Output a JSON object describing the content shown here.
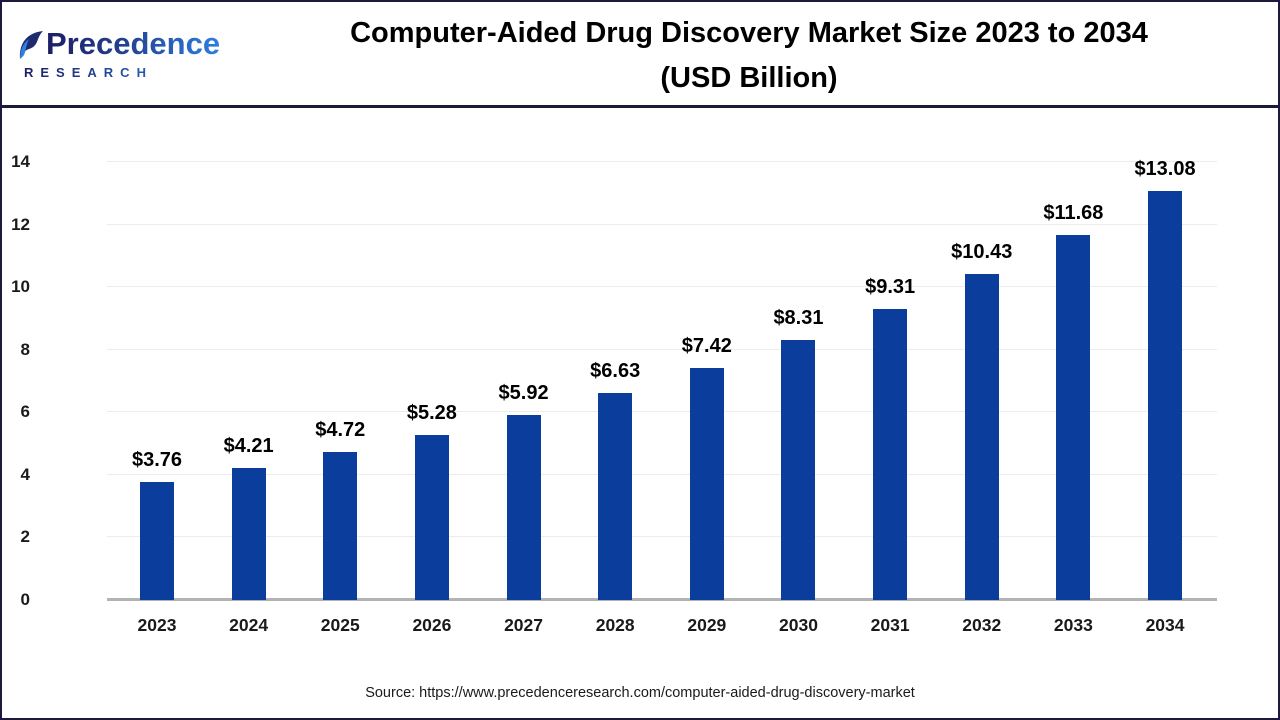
{
  "header": {
    "logo": {
      "brand": "Precedence",
      "sub": "RESEARCH"
    },
    "title_line1": "Computer-Aided Drug Discovery Market Size 2023 to 2034",
    "title_line2": "(USD Billion)"
  },
  "chart_data": {
    "type": "bar",
    "title": "Computer-Aided Drug Discovery Market Size 2023 to 2034 (USD Billion)",
    "categories": [
      "2023",
      "2024",
      "2025",
      "2026",
      "2027",
      "2028",
      "2029",
      "2030",
      "2031",
      "2032",
      "2033",
      "2034"
    ],
    "values": [
      3.76,
      4.21,
      4.72,
      5.28,
      5.92,
      6.63,
      7.42,
      8.31,
      9.31,
      10.43,
      11.68,
      13.08
    ],
    "value_prefix": "$",
    "ylabel": "",
    "xlabel": "",
    "ylim": [
      0,
      14
    ],
    "yticks": [
      0,
      2,
      4,
      6,
      8,
      10,
      12,
      14
    ],
    "grid": true,
    "legend": "none",
    "bar_color": "#0b3e9c",
    "gridline_color": "#ececec",
    "baseline_color": "#b3b3b3"
  },
  "footer": {
    "source": "Source: https://www.precedenceresearch.com/computer-aided-drug-discovery-market"
  }
}
